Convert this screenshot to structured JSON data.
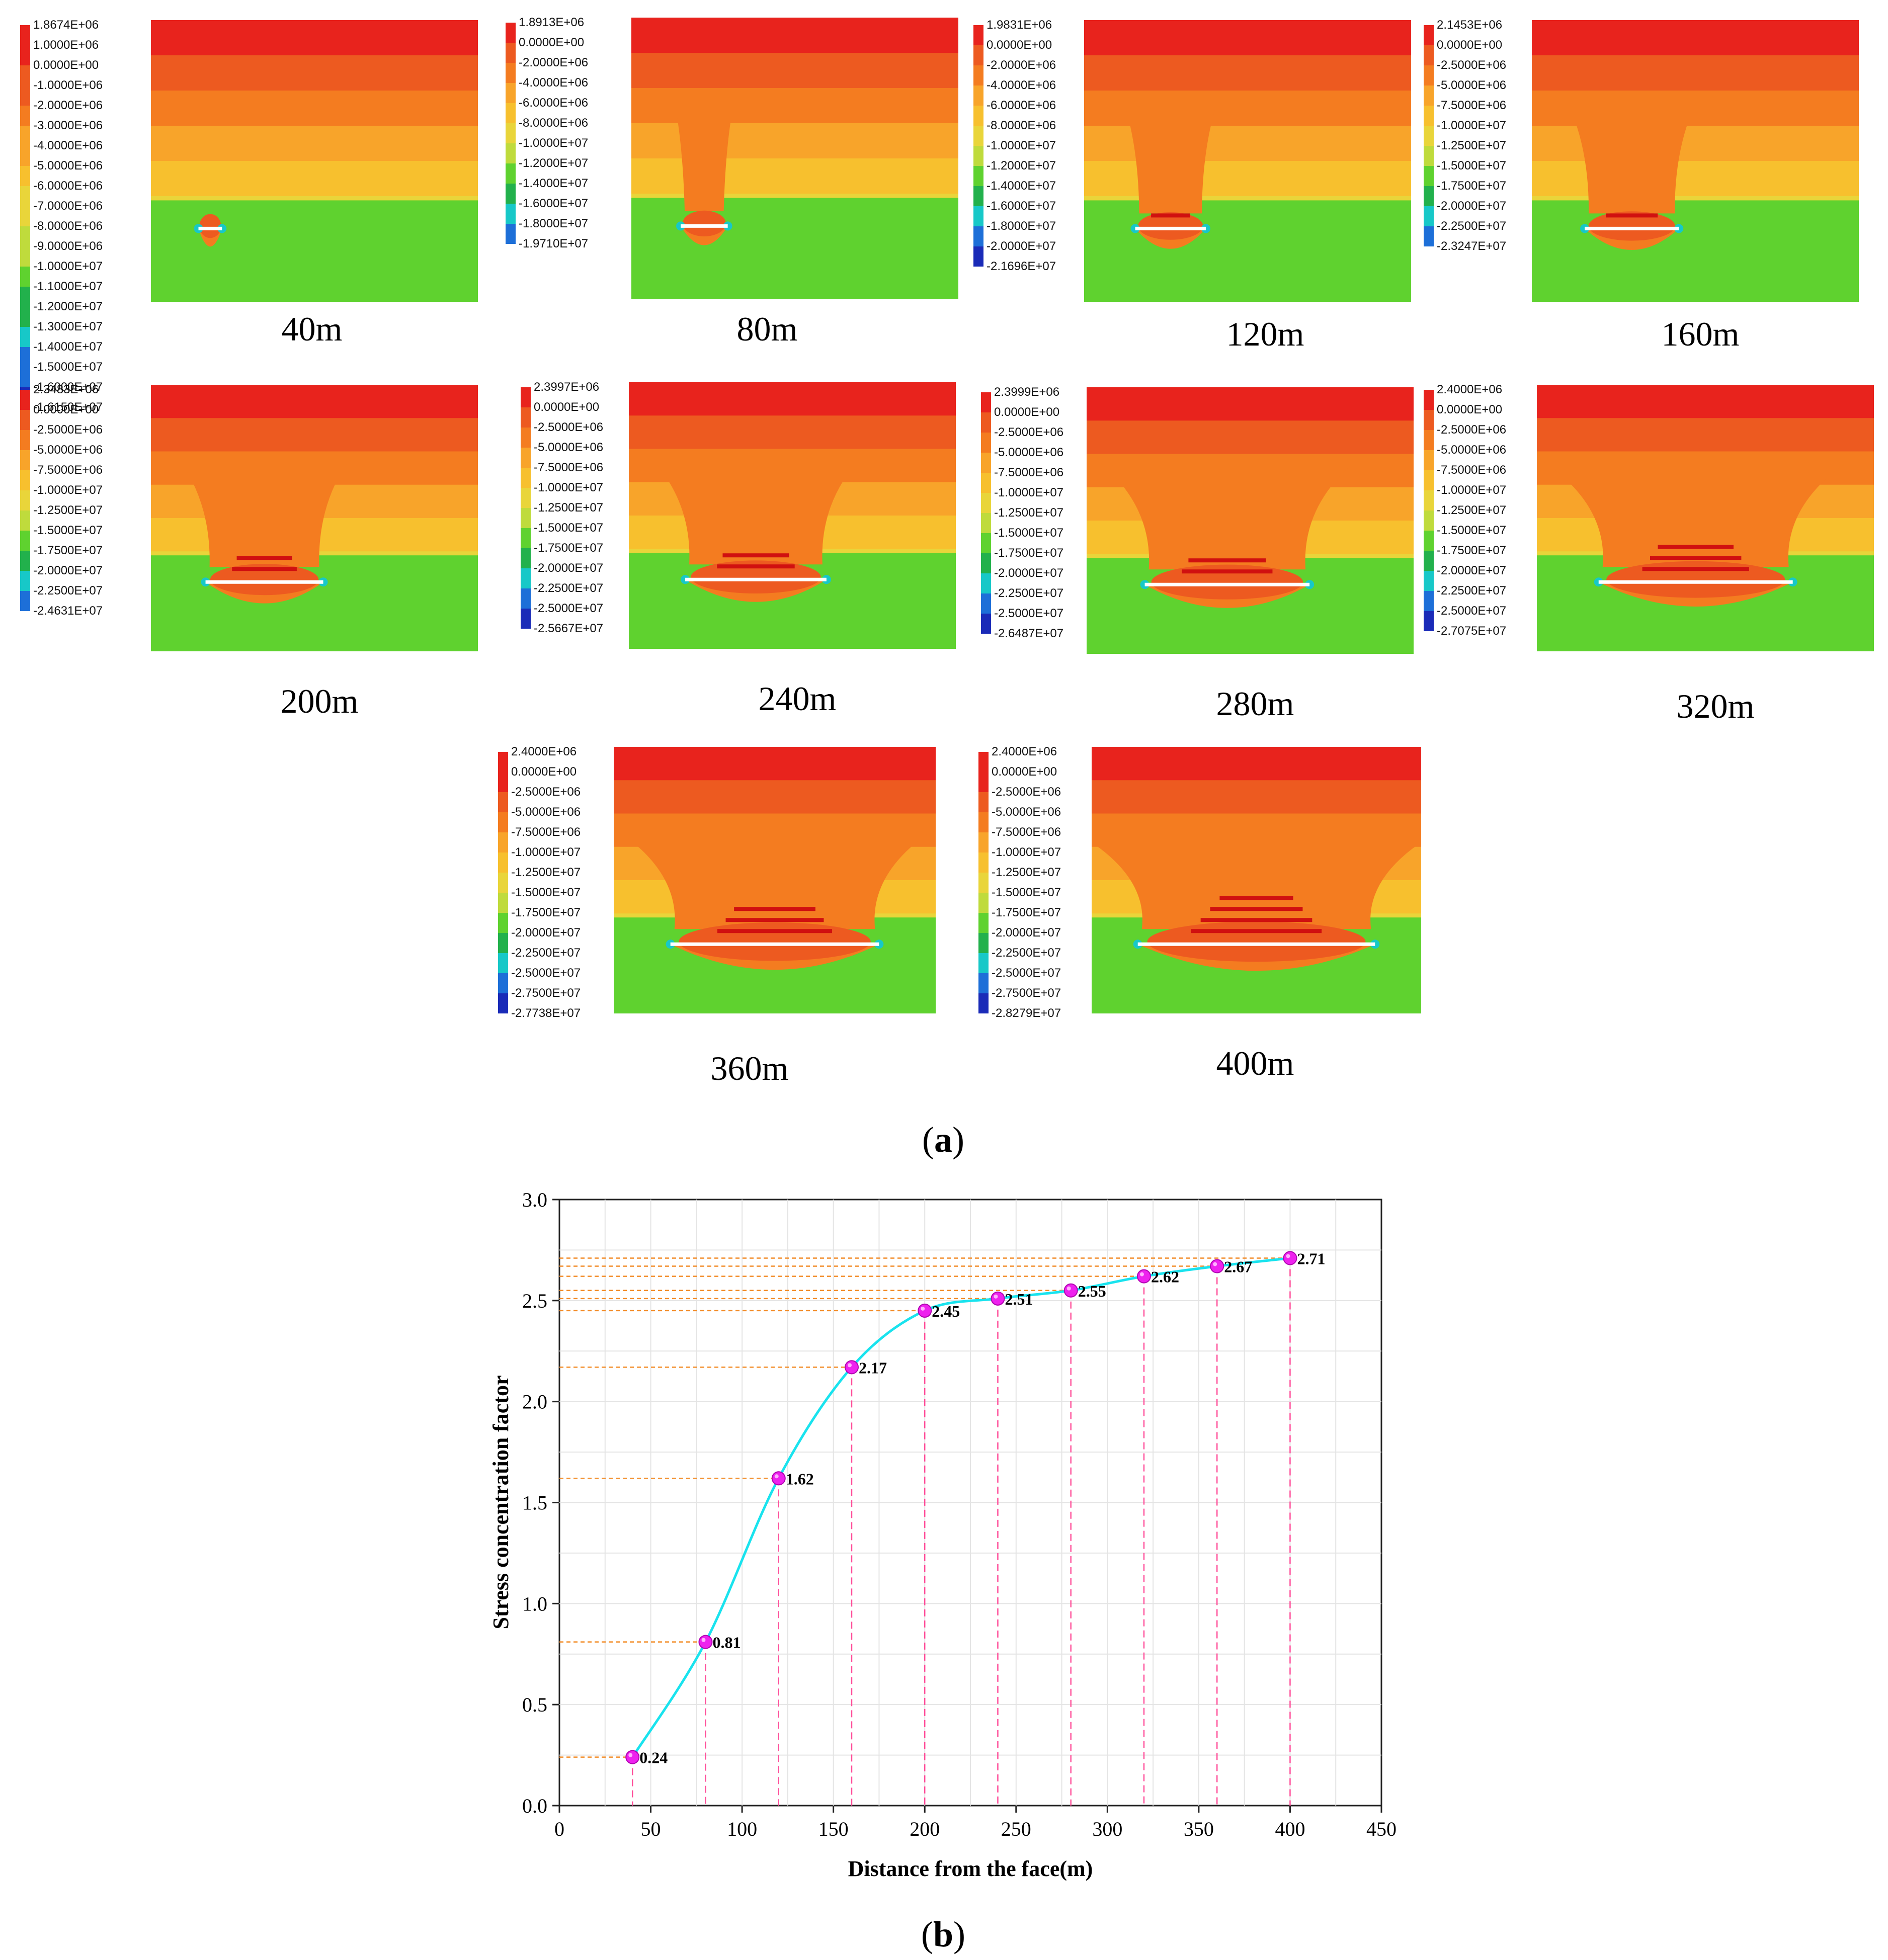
{
  "figure_a": {
    "label_open": "(",
    "label_letter": "a",
    "label_close": ")",
    "panels": [
      {
        "distance": "40m",
        "legend": [
          "1.8674E+06",
          "1.0000E+06",
          "0.0000E+00",
          "-1.0000E+06",
          "-2.0000E+06",
          "-3.0000E+06",
          "-4.0000E+06",
          "-5.0000E+06",
          "-6.0000E+06",
          "-7.0000E+06",
          "-8.0000E+06",
          "-9.0000E+06",
          "-1.0000E+07",
          "-1.1000E+07",
          "-1.2000E+07",
          "-1.3000E+07",
          "-1.4000E+07",
          "-1.5000E+07",
          "-1.6000E+07",
          "-1.6150E+07"
        ]
      },
      {
        "distance": "80m",
        "legend": [
          "1.8913E+06",
          "0.0000E+00",
          "-2.0000E+06",
          "-4.0000E+06",
          "-6.0000E+06",
          "-8.0000E+06",
          "-1.0000E+07",
          "-1.2000E+07",
          "-1.4000E+07",
          "-1.6000E+07",
          "-1.8000E+07",
          "-1.9710E+07"
        ]
      },
      {
        "distance": "120m",
        "legend": [
          "1.9831E+06",
          "0.0000E+00",
          "-2.0000E+06",
          "-4.0000E+06",
          "-6.0000E+06",
          "-8.0000E+06",
          "-1.0000E+07",
          "-1.2000E+07",
          "-1.4000E+07",
          "-1.6000E+07",
          "-1.8000E+07",
          "-2.0000E+07",
          "-2.1696E+07"
        ]
      },
      {
        "distance": "160m",
        "legend": [
          "2.1453E+06",
          "0.0000E+00",
          "-2.5000E+06",
          "-5.0000E+06",
          "-7.5000E+06",
          "-1.0000E+07",
          "-1.2500E+07",
          "-1.5000E+07",
          "-1.7500E+07",
          "-2.0000E+07",
          "-2.2500E+07",
          "-2.3247E+07"
        ]
      },
      {
        "distance": "200m",
        "legend": [
          "2.3483E+06",
          "0.0000E+00",
          "-2.5000E+06",
          "-5.0000E+06",
          "-7.5000E+06",
          "-1.0000E+07",
          "-1.2500E+07",
          "-1.5000E+07",
          "-1.7500E+07",
          "-2.0000E+07",
          "-2.2500E+07",
          "-2.4631E+07"
        ]
      },
      {
        "distance": "240m",
        "legend": [
          "2.3997E+06",
          "0.0000E+00",
          "-2.5000E+06",
          "-5.0000E+06",
          "-7.5000E+06",
          "-1.0000E+07",
          "-1.2500E+07",
          "-1.5000E+07",
          "-1.7500E+07",
          "-2.0000E+07",
          "-2.2500E+07",
          "-2.5000E+07",
          "-2.5667E+07"
        ]
      },
      {
        "distance": "280m",
        "legend": [
          "2.3999E+06",
          "0.0000E+00",
          "-2.5000E+06",
          "-5.0000E+06",
          "-7.5000E+06",
          "-1.0000E+07",
          "-1.2500E+07",
          "-1.5000E+07",
          "-1.7500E+07",
          "-2.0000E+07",
          "-2.2500E+07",
          "-2.5000E+07",
          "-2.6487E+07"
        ]
      },
      {
        "distance": "320m",
        "legend": [
          "2.4000E+06",
          "0.0000E+00",
          "-2.5000E+06",
          "-5.0000E+06",
          "-7.5000E+06",
          "-1.0000E+07",
          "-1.2500E+07",
          "-1.5000E+07",
          "-1.7500E+07",
          "-2.0000E+07",
          "-2.2500E+07",
          "-2.5000E+07",
          "-2.7075E+07"
        ]
      },
      {
        "distance": "360m",
        "legend": [
          "2.4000E+06",
          "0.0000E+00",
          "-2.5000E+06",
          "-5.0000E+06",
          "-7.5000E+06",
          "-1.0000E+07",
          "-1.2500E+07",
          "-1.5000E+07",
          "-1.7500E+07",
          "-2.0000E+07",
          "-2.2500E+07",
          "-2.5000E+07",
          "-2.7500E+07",
          "-2.7738E+07"
        ]
      },
      {
        "distance": "400m",
        "legend": [
          "2.4000E+06",
          "0.0000E+00",
          "-2.5000E+06",
          "-5.0000E+06",
          "-7.5000E+06",
          "-1.0000E+07",
          "-1.2500E+07",
          "-1.5000E+07",
          "-1.7500E+07",
          "-2.0000E+07",
          "-2.2500E+07",
          "-2.5000E+07",
          "-2.7500E+07",
          "-2.8279E+07"
        ]
      }
    ],
    "colors": {
      "red": "#e8231d",
      "orange_red": "#ed5a20",
      "orange": "#f47c20",
      "orange_light": "#f8a42a",
      "amber": "#f7c02e",
      "yellow": "#e9d53a",
      "yellow_green": "#bfdb3c",
      "green": "#5fd22f",
      "green_dark": "#22b14c",
      "cyan": "#17c8c8",
      "blue": "#1d6fd8",
      "navy": "#1a2bb8"
    }
  },
  "figure_b": {
    "label_open": "(",
    "label_letter": "b",
    "label_close": ")",
    "line_color": "#19e3ee",
    "marker_color": "#ee22ee",
    "h_guide_color": "#f28c28",
    "v_guide_color": "#ff4f9a"
  },
  "chart_data": {
    "type": "line",
    "title": "",
    "xlabel": "Distance from the face(m)",
    "ylabel": "Stress concentration factor",
    "x": [
      40,
      80,
      120,
      160,
      200,
      240,
      280,
      320,
      360,
      400
    ],
    "y": [
      0.24,
      0.81,
      1.62,
      2.17,
      2.45,
      2.51,
      2.55,
      2.62,
      2.67,
      2.71
    ],
    "data_labels": [
      "0.24",
      "0.81",
      "1.62",
      "2.17",
      "2.45",
      "2.51",
      "2.55",
      "2.62",
      "2.67",
      "2.71"
    ],
    "xlim": [
      0,
      450
    ],
    "ylim": [
      0.0,
      3.0
    ],
    "xticks": [
      "0",
      "50",
      "100",
      "150",
      "200",
      "250",
      "300",
      "350",
      "400",
      "450"
    ],
    "yticks": [
      "0.0",
      "0.5",
      "1.0",
      "1.5",
      "2.0",
      "2.5",
      "3.0"
    ],
    "grid": true
  }
}
